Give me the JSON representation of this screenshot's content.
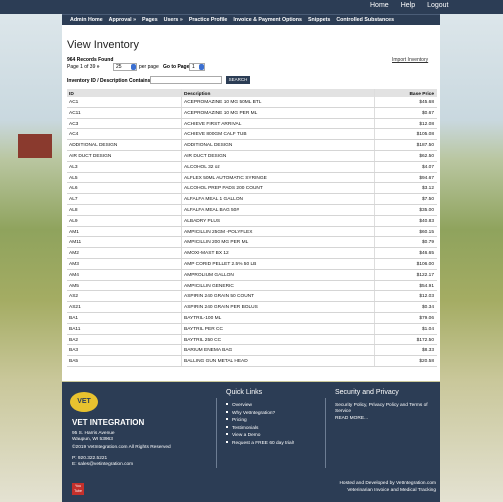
{
  "top_nav": [
    "Home",
    "Help",
    "Logout"
  ],
  "menu": [
    "Admin Home",
    "Approval »",
    "Pages",
    "Users »",
    "Practice Profile",
    "Invoice & Payment Options",
    "Snippets",
    "Controlled Substances"
  ],
  "heading": "View Inventory",
  "records_found": "964 Records Found",
  "pager": {
    "page_info": "Page 1 of 39",
    "next": "»",
    "per_page_value": "25",
    "per_page": "per page",
    "go_to": "Go to Page",
    "page_value": "1"
  },
  "import_link": "Import Inventory",
  "search": {
    "label": "Inventory ID / Description Contains",
    "button": "SEARCH"
  },
  "table": {
    "headers": [
      "ID",
      "Description",
      "Base Price"
    ],
    "rows": [
      [
        "AC1",
        "ACEPROMAZINE 10 MG 50ML BTL",
        "$45.68"
      ],
      [
        "AC11",
        "ACEPROMAZINE 10 MG PER ML",
        "$0.67"
      ],
      [
        "AC3",
        "ACHIEVE FIRST ARRIVAL",
        "$12.08"
      ],
      [
        "AC4",
        "ACHIEVE 800GM CALF TUB",
        "$105.08"
      ],
      [
        "ADDITIONAL DESIGN",
        "ADDITIONAL DESIGN",
        "$187.50"
      ],
      [
        "AIR DUCT DESIGN",
        "AIR DUCT DESIGN",
        "$62.50"
      ],
      [
        "AL3",
        "ALCOHOL 32 oz",
        "$4.07"
      ],
      [
        "AL5",
        "ALFLEX 50ML AUTOMATIC SYRINGE",
        "$94.67"
      ],
      [
        "AL6",
        "ALCOHOL PREP PADS 200 COUNT",
        "$3.12"
      ],
      [
        "AL7",
        "ALFALFA MEAL 1 GALLON",
        "$7.50"
      ],
      [
        "AL8",
        "ALFALFA MEAL BAG 50#",
        "$35.00"
      ],
      [
        "AL9",
        "ALBADRY PLUS",
        "$40.83"
      ],
      [
        "AM1",
        "AMPICILLIN 25GM -POLYFLEX",
        "$60.15"
      ],
      [
        "AM11",
        "AMPICILLIN 200 MG PER ML",
        "$0.79"
      ],
      [
        "AM2",
        "AMOXI-MAST BX 12",
        "$46.65"
      ],
      [
        "AM3",
        "AMP CORID PELLET 2.5% 50 LB",
        "$106.00"
      ],
      [
        "AM4",
        "AMPROLIUM GALLON",
        "$122.17"
      ],
      [
        "AM5",
        "AMPICILLIN GENERIC",
        "$54.91"
      ],
      [
        "AS2",
        "ASPIRIN 240 GRAIN 50 COUNT",
        "$12.03"
      ],
      [
        "AS21",
        "ASPIRIN 240 GRAIN PER BOLUS",
        "$0.34"
      ],
      [
        "BA1",
        "BAYTRIL-100 ML",
        "$79.06"
      ],
      [
        "BA11",
        "BAYTRIL PER CC",
        "$1.04"
      ],
      [
        "BA2",
        "BAYTRIL 250 CC",
        "$172.50"
      ],
      [
        "BA3",
        "BARIUM ENEMA BAG",
        "$8.33"
      ],
      [
        "BA5",
        "BALLING GUN METAL HEAD",
        "$20.58"
      ]
    ]
  },
  "footer": {
    "logo": "VET",
    "company": "VET INTEGRATION",
    "address": [
      "95 S. Harris Avenue",
      "Waupun, WI 53963"
    ],
    "copyright": "©2019 VetIntegration.com All Rights Reserved",
    "phone": "P: 920.322.5221",
    "email": "E: sales@vetintegration.com",
    "quick_links_title": "Quick Links",
    "quick_links": [
      "Overview",
      "Why VetIntegration?",
      "Pricing",
      "Testimonials",
      "View a Demo",
      "Request a FREE 60 day trial!"
    ],
    "security_title": "Security and Privacy",
    "security_text": "Security Policy, Privacy Policy and Terms of Service",
    "read_more": "READ MORE...",
    "hosted": "Hosted and Developed by VetIntegration.com",
    "tagline": "Veterinarian Invoice and Medical Tracking",
    "youtube": "You Tube"
  }
}
